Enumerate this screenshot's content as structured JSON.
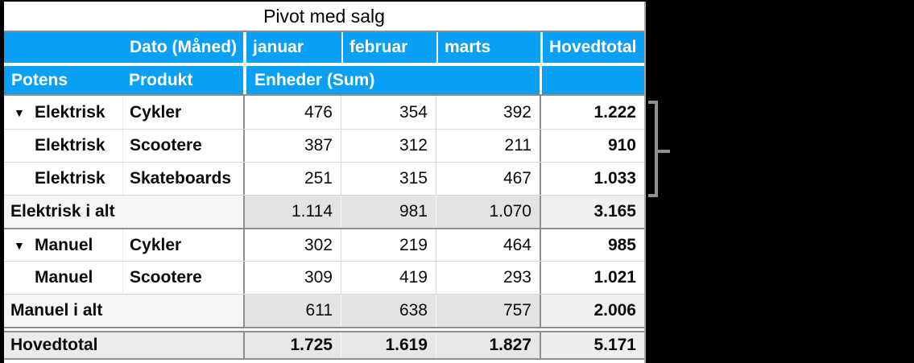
{
  "table": {
    "title": "Pivot med salg",
    "header": {
      "dato_label": "Dato (Måned)",
      "months": [
        "januar",
        "februar",
        "marts"
      ],
      "hovedtotal_label": "Hovedtotal",
      "potens_label": "Potens",
      "produkt_label": "Produkt",
      "enheder_label": "Enheder (Sum)"
    },
    "rows": [
      {
        "type": "item",
        "expander": "▼",
        "group": "Elektrisk",
        "product": "Cykler",
        "values": [
          "476",
          "354",
          "392"
        ],
        "total": "1.222"
      },
      {
        "type": "item",
        "expander": "",
        "group": "Elektrisk",
        "product": "Scootere",
        "values": [
          "387",
          "312",
          "211"
        ],
        "total": "910"
      },
      {
        "type": "item",
        "expander": "",
        "group": "Elektrisk",
        "product": "Skateboards",
        "values": [
          "251",
          "315",
          "467"
        ],
        "total": "1.033"
      },
      {
        "type": "subtotal",
        "label": "Elektrisk i alt",
        "values": [
          "1.114",
          "981",
          "1.070"
        ],
        "total": "3.165"
      },
      {
        "type": "item",
        "expander": "▼",
        "group": "Manuel",
        "product": "Cykler",
        "values": [
          "302",
          "219",
          "464"
        ],
        "total": "985"
      },
      {
        "type": "item",
        "expander": "",
        "group": "Manuel",
        "product": "Scootere",
        "values": [
          "309",
          "419",
          "293"
        ],
        "total": "1.021"
      },
      {
        "type": "subtotal",
        "label": "Manuel i alt",
        "values": [
          "611",
          "638",
          "757"
        ],
        "total": "2.006"
      },
      {
        "type": "grandtotal",
        "label": "Hovedtotal",
        "values": [
          "1.725",
          "1.619",
          "1.827"
        ],
        "total": "5.171"
      }
    ]
  },
  "annotation": {
    "bracket_icon": "right-brace-bracket",
    "spans_rows": [
      "Cykler",
      "Scootere",
      "Skateboards"
    ]
  },
  "colors": {
    "header_blue": "#0aa0f7",
    "header_text": "#ffffff",
    "section_border": "#8e8e8e",
    "row_border": "#d9d9d9",
    "table_edge": "#a5a5a5",
    "subtotal_value_bg": "#e3e3e3",
    "subtotal_label_bg": "#f5f5f5",
    "grandtotal_bg": "#e9e9e9",
    "bracket_gray": "#8f8f8f",
    "page_background": "#000000"
  }
}
